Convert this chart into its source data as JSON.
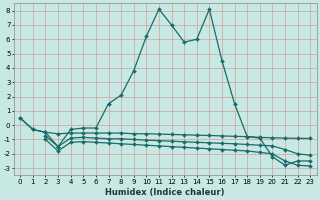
{
  "xlabel": "Humidex (Indice chaleur)",
  "xlim": [
    -0.5,
    23.5
  ],
  "ylim": [
    -3.5,
    8.5
  ],
  "yticks": [
    -3,
    -2,
    -1,
    0,
    1,
    2,
    3,
    4,
    5,
    6,
    7,
    8
  ],
  "xticks": [
    0,
    1,
    2,
    3,
    4,
    5,
    6,
    7,
    8,
    9,
    10,
    11,
    12,
    13,
    14,
    15,
    16,
    17,
    18,
    19,
    20,
    21,
    22,
    23
  ],
  "bg_color": "#c8e8e4",
  "line_color": "#1a6b6b",
  "grid_color": "#d0a0a0",
  "main_line_x": [
    0,
    1,
    2,
    3,
    4,
    5,
    6,
    7,
    8,
    9,
    10,
    11,
    12,
    13,
    14,
    15,
    16,
    17,
    18,
    19,
    20,
    21,
    22,
    23
  ],
  "main_line_y": [
    0.5,
    -0.3,
    -0.5,
    -1.5,
    -0.3,
    -0.2,
    -0.2,
    1.5,
    2.1,
    3.8,
    6.2,
    8.1,
    7.0,
    5.8,
    6.0,
    8.1,
    4.5,
    1.5,
    -0.8,
    -0.9,
    -2.2,
    -2.8,
    -2.5,
    -2.5
  ],
  "flat1_x": [
    0,
    1,
    2,
    3,
    4,
    5,
    6,
    7,
    8,
    9,
    10,
    11,
    12,
    13,
    14,
    15,
    16,
    17,
    18,
    19,
    20,
    21,
    22,
    23
  ],
  "flat1_y": [
    0.5,
    -0.3,
    -0.5,
    -0.6,
    -0.55,
    -0.55,
    -0.55,
    -0.55,
    -0.55,
    -0.6,
    -0.6,
    -0.62,
    -0.65,
    -0.67,
    -0.7,
    -0.72,
    -0.75,
    -0.78,
    -0.8,
    -0.85,
    -0.88,
    -0.9,
    -0.92,
    -0.93
  ],
  "flat2_x": [
    2,
    3,
    4,
    5,
    6,
    7,
    8,
    9,
    10,
    11,
    12,
    13,
    14,
    15,
    16,
    17,
    18,
    19,
    20,
    21,
    22,
    23
  ],
  "flat2_y": [
    -0.75,
    -1.5,
    -0.9,
    -0.85,
    -0.9,
    -0.95,
    -0.95,
    -1.0,
    -1.05,
    -1.08,
    -1.12,
    -1.16,
    -1.2,
    -1.23,
    -1.27,
    -1.3,
    -1.35,
    -1.4,
    -1.45,
    -1.7,
    -2.0,
    -2.1
  ],
  "flat3_x": [
    2,
    3,
    4,
    5,
    6,
    7,
    8,
    9,
    10,
    11,
    12,
    13,
    14,
    15,
    16,
    17,
    18,
    19,
    20,
    21,
    22,
    23
  ],
  "flat3_y": [
    -1.0,
    -1.8,
    -1.2,
    -1.15,
    -1.2,
    -1.25,
    -1.3,
    -1.35,
    -1.4,
    -1.45,
    -1.5,
    -1.55,
    -1.6,
    -1.65,
    -1.7,
    -1.75,
    -1.8,
    -1.9,
    -2.0,
    -2.5,
    -2.8,
    -2.85
  ],
  "marker": "D",
  "markersize": 2,
  "linewidth": 0.9,
  "xlabel_fontsize": 6,
  "tick_fontsize": 5
}
